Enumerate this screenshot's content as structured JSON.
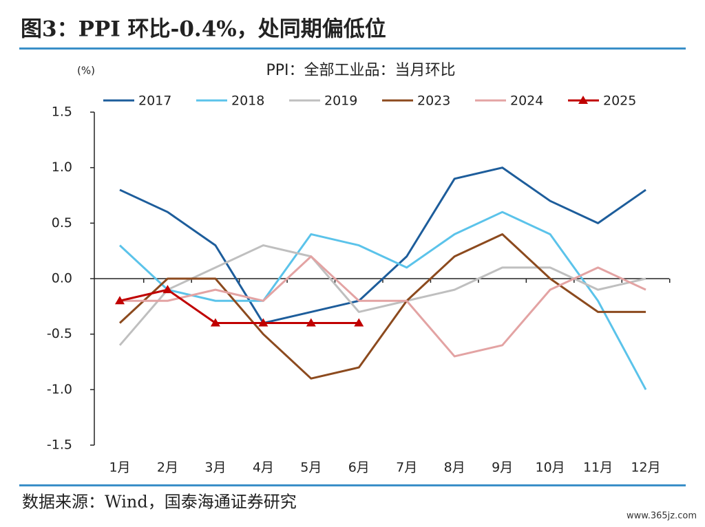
{
  "header": {
    "title": "图3：PPI 环比-0.4%，处同期偏低位"
  },
  "chart_data": {
    "type": "line",
    "title": "PPI：全部工业品：当月环比",
    "y_unit": "(%)",
    "categories": [
      "1月",
      "2月",
      "3月",
      "4月",
      "5月",
      "6月",
      "7月",
      "8月",
      "9月",
      "10月",
      "11月",
      "12月"
    ],
    "series": [
      {
        "name": "2017",
        "color": "#1d5d9b",
        "values": [
          0.8,
          0.6,
          0.3,
          -0.4,
          -0.3,
          -0.2,
          0.2,
          0.9,
          1.0,
          0.7,
          0.5,
          0.8
        ]
      },
      {
        "name": "2018",
        "color": "#5bc3ea",
        "values": [
          0.3,
          -0.1,
          -0.2,
          -0.2,
          0.4,
          0.3,
          0.1,
          0.4,
          0.6,
          0.4,
          -0.2,
          -1.0
        ]
      },
      {
        "name": "2019",
        "color": "#bfbfbf",
        "values": [
          -0.6,
          -0.1,
          0.1,
          0.3,
          0.2,
          -0.3,
          -0.2,
          -0.1,
          0.1,
          0.1,
          -0.1,
          0.0
        ]
      },
      {
        "name": "2023",
        "color": "#8c4a1e",
        "values": [
          -0.4,
          0.0,
          0.0,
          -0.5,
          -0.9,
          -0.8,
          -0.2,
          0.2,
          0.4,
          0.0,
          -0.3,
          -0.3
        ]
      },
      {
        "name": "2024",
        "color": "#e3a3a3",
        "values": [
          -0.2,
          -0.2,
          -0.1,
          -0.2,
          0.2,
          -0.2,
          -0.2,
          -0.7,
          -0.6,
          -0.1,
          0.1,
          -0.1
        ]
      },
      {
        "name": "2025",
        "color": "#c00000",
        "marker": "triangle",
        "values": [
          -0.2,
          -0.1,
          -0.4,
          -0.4,
          -0.4,
          -0.4,
          null,
          null,
          null,
          null,
          null,
          null
        ]
      }
    ],
    "ylim": [
      -1.5,
      1.5
    ],
    "yticks": [
      1.5,
      {
        "value": 1,
        "label": "1.0"
      },
      0.5,
      {
        "value": 0,
        "label": "0.0"
      },
      -0.5,
      {
        "value": -1,
        "label": "-1.0"
      },
      -1.5
    ],
    "legend": "top"
  },
  "footer": {
    "source": "数据来源：Wind，国泰海通证券研究",
    "watermark": "www.365jz.com"
  }
}
